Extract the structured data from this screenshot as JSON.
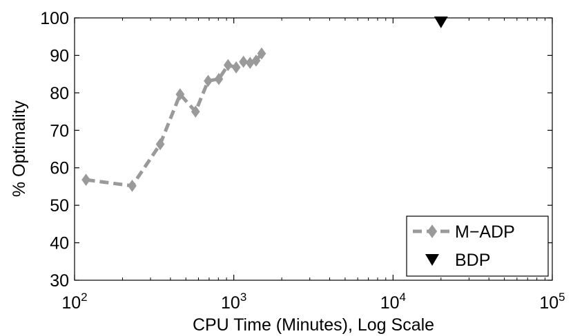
{
  "chart_data": {
    "type": "line",
    "title": "",
    "xlabel": "CPU Time (Minutes), Log Scale",
    "ylabel": "% Optimality",
    "x_scale": "log",
    "xlim": [
      100,
      100000
    ],
    "ylim": [
      30,
      100
    ],
    "grid": false,
    "legend_position": "bottom-right",
    "x_ticks": [
      {
        "value": 100,
        "base": "10",
        "exp": "2"
      },
      {
        "value": 1000,
        "base": "10",
        "exp": "3"
      },
      {
        "value": 10000,
        "base": "10",
        "exp": "4"
      },
      {
        "value": 100000,
        "base": "10",
        "exp": "5"
      }
    ],
    "y_ticks": [
      30,
      40,
      50,
      60,
      70,
      80,
      90,
      100
    ],
    "series": [
      {
        "name": "M−ADP",
        "style": "dashed-line-diamond-markers",
        "color": "#9a9a9a",
        "x": [
          118,
          230,
          345,
          460,
          575,
          690,
          805,
          920,
          1035,
          1150,
          1265,
          1380,
          1495
        ],
        "y": [
          56.8,
          55.2,
          66.3,
          79.6,
          75.0,
          83.2,
          83.7,
          87.4,
          86.8,
          88.3,
          88.0,
          88.6,
          90.5
        ]
      },
      {
        "name": "BDP",
        "style": "triangle-down-marker",
        "color": "#000000",
        "x": [
          20000
        ],
        "y": [
          98.9
        ]
      }
    ]
  }
}
